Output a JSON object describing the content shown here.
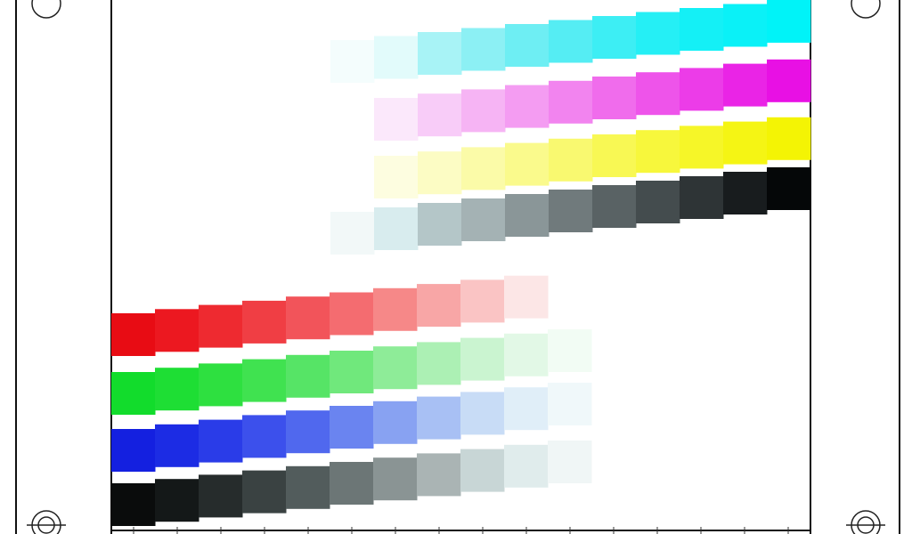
{
  "strips": [
    {
      "colors": [
        "#f4fdfd",
        "#e2fbfb",
        "#a8f3f6",
        "#8cf0f4",
        "#6eeef3",
        "#55edf3",
        "#3deef4",
        "#25eff5",
        "#14f0f6",
        "#0af1f7",
        "#00f3f8"
      ]
    },
    {
      "colors": [
        "#fbe8fb",
        "#f8ccf8",
        "#f6b4f4",
        "#f49cf2",
        "#f284ef",
        "#f06cec",
        "#ee54ea",
        "#ec3ce8",
        "#ea24e6",
        "#e810e4"
      ]
    },
    {
      "colors": [
        "#fdfde0",
        "#fcfcc4",
        "#fbfba8",
        "#fafa8c",
        "#f9f970",
        "#f8f854",
        "#f7f73c",
        "#f6f628",
        "#f5f514",
        "#f4f404"
      ]
    },
    {
      "colors": [
        "#f2f8f8",
        "#d8ecee",
        "#b4c6c8",
        "#a4b2b4",
        "#8a9698",
        "#707a7c",
        "#596264",
        "#444c4e",
        "#2e3436",
        "#181c1e",
        "#050708"
      ]
    },
    {
      "colors": [
        "#e80c14",
        "#ec1820",
        "#ee2a30",
        "#f03e44",
        "#f2545a",
        "#f46c70",
        "#f68888",
        "#f8a6a6",
        "#fac4c4",
        "#fce6e6"
      ]
    },
    {
      "colors": [
        "#12dc2c",
        "#1ede34",
        "#2ee040",
        "#40e250",
        "#56e466",
        "#70e87c",
        "#8eec98",
        "#acf0b4",
        "#caf4d0",
        "#e2f8e6",
        "#f2fcf4"
      ]
    },
    {
      "colors": [
        "#1420e0",
        "#1c2ce4",
        "#2a3ce8",
        "#3c50ec",
        "#5068ee",
        "#6a84f0",
        "#88a2f2",
        "#a8c0f4",
        "#c8dcf6",
        "#e0eef8",
        "#f0f8fa"
      ]
    },
    {
      "colors": [
        "#0a0c0c",
        "#141818",
        "#262c2c",
        "#3a4242",
        "#525c5c",
        "#6c7676",
        "#8a9494",
        "#aab4b4",
        "#c8d6d6",
        "#e0ecec",
        "#f0f6f6"
      ]
    }
  ]
}
